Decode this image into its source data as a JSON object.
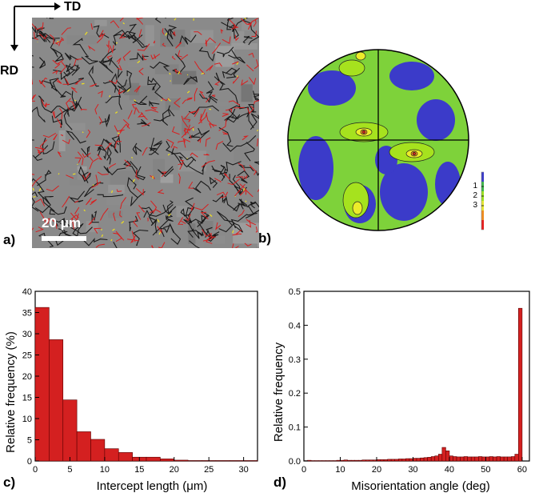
{
  "panels": {
    "a": {
      "label": "a)",
      "scalebar": "20 μm",
      "dir_td": "TD",
      "dir_rd": "RD"
    },
    "b": {
      "label": "b)",
      "legend_ticks": [
        "1",
        "2",
        "3"
      ],
      "legend_colors": [
        "#3a3ac8",
        "#3cb44a",
        "#9be11e",
        "#e6e632",
        "#f08c1e",
        "#e61e1e"
      ]
    },
    "c": {
      "label": "c)"
    },
    "d": {
      "label": "d)"
    }
  },
  "chart_data": [
    {
      "type": "bar",
      "xlabel": "Intercept length (μm)",
      "ylabel": "Relative frequency (%)",
      "xlim": [
        0,
        32
      ],
      "ylim": [
        0,
        40
      ],
      "xticks": [
        0,
        5,
        10,
        15,
        20,
        25,
        30
      ],
      "yticks": [
        0,
        5,
        10,
        15,
        20,
        25,
        30,
        35,
        40
      ],
      "bin_width": 2,
      "x": [
        1,
        3,
        5,
        7,
        9,
        11,
        13,
        15,
        17,
        19,
        21,
        23,
        25,
        27,
        29,
        31
      ],
      "values": [
        36.2,
        28.6,
        14.4,
        6.9,
        5.1,
        2.9,
        2.0,
        0.9,
        0.9,
        0.5,
        0.2,
        0.1,
        0.1,
        0.1,
        0.1,
        0.1
      ],
      "bar_color": "#d42020"
    },
    {
      "type": "bar",
      "xlabel": "Misorientation angle (deg)",
      "ylabel": "Relative frequency",
      "xlim": [
        0,
        62
      ],
      "ylim": [
        0,
        0.5
      ],
      "xticks": [
        0,
        10,
        20,
        30,
        40,
        50,
        60
      ],
      "yticks": [
        0.0,
        0.1,
        0.2,
        0.3,
        0.4,
        0.5
      ],
      "tick_labels_y": [
        "0.0",
        "0.1",
        "0.2",
        "0.3",
        "0.4",
        "0.5"
      ],
      "bin_width": 1,
      "x": [
        0.5,
        1.5,
        2.5,
        3.5,
        4.5,
        5.5,
        6.5,
        7.5,
        8.5,
        9.5,
        10.5,
        11.5,
        12.5,
        13.5,
        14.5,
        15.5,
        16.5,
        17.5,
        18.5,
        19.5,
        20.5,
        21.5,
        22.5,
        23.5,
        24.5,
        25.5,
        26.5,
        27.5,
        28.5,
        29.5,
        30.5,
        31.5,
        32.5,
        33.5,
        34.5,
        35.5,
        36.5,
        37.5,
        38.5,
        39.5,
        40.5,
        41.5,
        42.5,
        43.5,
        44.5,
        45.5,
        46.5,
        47.5,
        48.5,
        49.5,
        50.5,
        51.5,
        52.5,
        53.5,
        54.5,
        55.5,
        56.5,
        57.5,
        58.5,
        59.5
      ],
      "values": [
        0.001,
        0.002,
        0.001,
        0.001,
        0.001,
        0.001,
        0.001,
        0.001,
        0.001,
        0.002,
        0.002,
        0.003,
        0.002,
        0.002,
        0.002,
        0.002,
        0.003,
        0.003,
        0.003,
        0.003,
        0.004,
        0.004,
        0.004,
        0.005,
        0.005,
        0.005,
        0.006,
        0.006,
        0.007,
        0.007,
        0.008,
        0.008,
        0.009,
        0.01,
        0.011,
        0.013,
        0.015,
        0.02,
        0.04,
        0.03,
        0.015,
        0.013,
        0.012,
        0.012,
        0.013,
        0.012,
        0.012,
        0.012,
        0.013,
        0.012,
        0.012,
        0.013,
        0.012,
        0.013,
        0.012,
        0.012,
        0.012,
        0.013,
        0.02,
        0.45
      ],
      "bar_color": "#d42020"
    }
  ]
}
